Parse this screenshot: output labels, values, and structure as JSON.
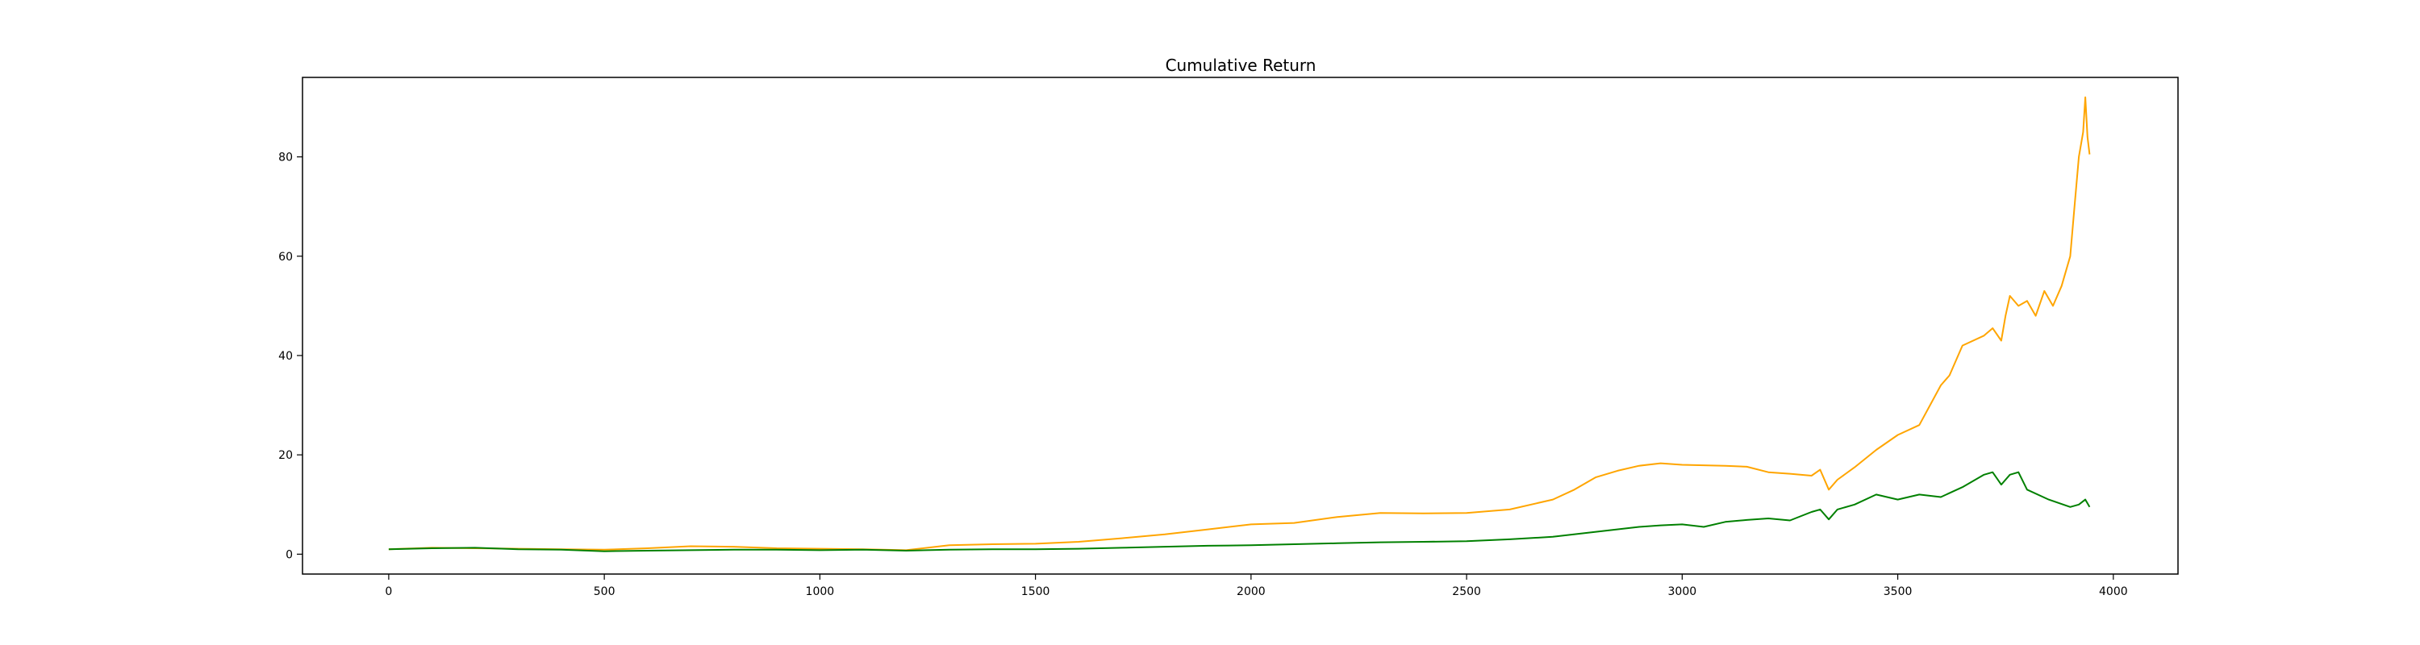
{
  "chart_data": {
    "type": "line",
    "title": "Cumulative Return",
    "xlabel": "",
    "ylabel": "",
    "xlim": [
      -200,
      4150
    ],
    "ylim": [
      -4,
      96
    ],
    "x_ticks": [
      0,
      500,
      1000,
      1500,
      2000,
      2500,
      3000,
      3500,
      4000
    ],
    "y_ticks": [
      0,
      20,
      40,
      60,
      80
    ],
    "grid": false,
    "legend": "none",
    "series": [
      {
        "color": "#ffa500",
        "x": [
          0,
          100,
          200,
          300,
          400,
          500,
          600,
          700,
          800,
          900,
          1000,
          1100,
          1200,
          1300,
          1400,
          1500,
          1600,
          1700,
          1800,
          1900,
          2000,
          2100,
          2200,
          2300,
          2400,
          2500,
          2600,
          2700,
          2750,
          2800,
          2850,
          2900,
          2950,
          3000,
          3050,
          3100,
          3150,
          3200,
          3250,
          3300,
          3320,
          3340,
          3360,
          3400,
          3450,
          3500,
          3550,
          3600,
          3620,
          3650,
          3700,
          3720,
          3740,
          3750,
          3760,
          3780,
          3800,
          3820,
          3840,
          3860,
          3880,
          3900,
          3910,
          3920,
          3930,
          3935,
          3940,
          3945
        ],
        "y": [
          1.0,
          1.3,
          1.2,
          1.1,
          1.0,
          0.9,
          1.2,
          1.6,
          1.5,
          1.2,
          1.1,
          1.0,
          0.8,
          1.8,
          2.0,
          2.1,
          2.5,
          3.2,
          4.0,
          5.0,
          6.0,
          6.3,
          7.5,
          8.3,
          8.2,
          8.3,
          9.0,
          11.0,
          13.0,
          15.5,
          16.8,
          17.8,
          18.3,
          18.0,
          17.9,
          17.8,
          17.6,
          16.5,
          16.2,
          15.8,
          17.0,
          13.0,
          15.0,
          17.5,
          21.0,
          24.0,
          26.0,
          34.0,
          36.0,
          42.0,
          44.0,
          45.5,
          43.0,
          48.0,
          52.0,
          50.0,
          51.0,
          48.0,
          53.0,
          50.0,
          54.0,
          60.0,
          70.0,
          80.0,
          85.0,
          92.0,
          84.0,
          80.5
        ]
      },
      {
        "color": "#008000",
        "x": [
          0,
          100,
          200,
          300,
          400,
          500,
          600,
          700,
          800,
          900,
          1000,
          1100,
          1200,
          1300,
          1400,
          1500,
          1600,
          1700,
          1800,
          1900,
          2000,
          2100,
          2200,
          2300,
          2400,
          2500,
          2600,
          2700,
          2800,
          2900,
          2950,
          3000,
          3050,
          3100,
          3150,
          3200,
          3250,
          3300,
          3320,
          3340,
          3360,
          3400,
          3450,
          3500,
          3550,
          3600,
          3650,
          3700,
          3720,
          3740,
          3760,
          3780,
          3800,
          3850,
          3900,
          3920,
          3935,
          3945
        ],
        "y": [
          1.0,
          1.2,
          1.3,
          1.0,
          0.9,
          0.6,
          0.7,
          0.8,
          0.9,
          0.9,
          0.8,
          0.9,
          0.7,
          0.9,
          1.0,
          1.0,
          1.1,
          1.3,
          1.5,
          1.7,
          1.8,
          2.0,
          2.2,
          2.4,
          2.5,
          2.6,
          3.0,
          3.5,
          4.5,
          5.5,
          5.8,
          6.0,
          5.5,
          6.5,
          6.9,
          7.2,
          6.8,
          8.5,
          9.0,
          7.0,
          9.0,
          10.0,
          12.0,
          11.0,
          12.0,
          11.5,
          13.5,
          16.0,
          16.5,
          14.0,
          16.0,
          16.5,
          13.0,
          11.0,
          9.5,
          10.0,
          11.0,
          9.5
        ]
      }
    ]
  }
}
